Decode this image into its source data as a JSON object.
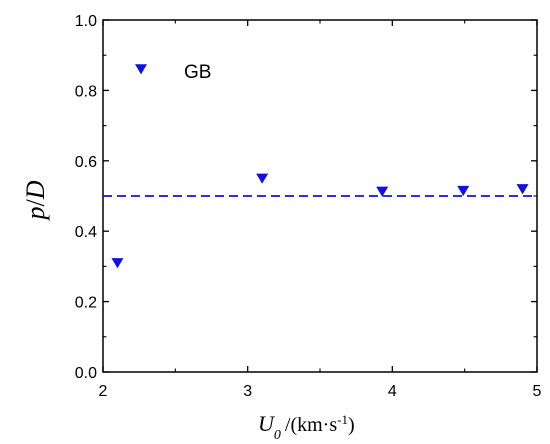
{
  "chart_data": {
    "type": "scatter",
    "xlabel": {
      "symbol": "U",
      "subscript": "0",
      "unit": "/(km·s",
      "unit_sup": "-1",
      "unit_close": ")"
    },
    "ylabel": {
      "numerator": "p",
      "slash": "/",
      "denominator": "D"
    },
    "xlim": [
      2,
      5
    ],
    "ylim": [
      0.0,
      1.0
    ],
    "x_ticks": [
      2,
      3,
      4,
      5
    ],
    "x_tick_labels": [
      "2",
      "3",
      "4",
      "5"
    ],
    "y_ticks": [
      0.0,
      0.2,
      0.4,
      0.6,
      0.8,
      1.0
    ],
    "y_tick_labels": [
      "0.0",
      "0.2",
      "0.4",
      "0.6",
      "0.8",
      "1.0"
    ],
    "grid": false,
    "legend_position": "top-left",
    "series": [
      {
        "name": "GB",
        "marker": "triangle-down",
        "color": "#1010e0",
        "points": [
          {
            "x": 2.1,
            "y": 0.31
          },
          {
            "x": 3.1,
            "y": 0.55
          },
          {
            "x": 3.93,
            "y": 0.513
          },
          {
            "x": 4.49,
            "y": 0.515
          },
          {
            "x": 4.9,
            "y": 0.52
          }
        ]
      }
    ],
    "reference_line": {
      "style": "dashed",
      "color": "#1010e0",
      "x": [
        2,
        5
      ],
      "y": [
        0.5,
        0.5
      ]
    }
  }
}
